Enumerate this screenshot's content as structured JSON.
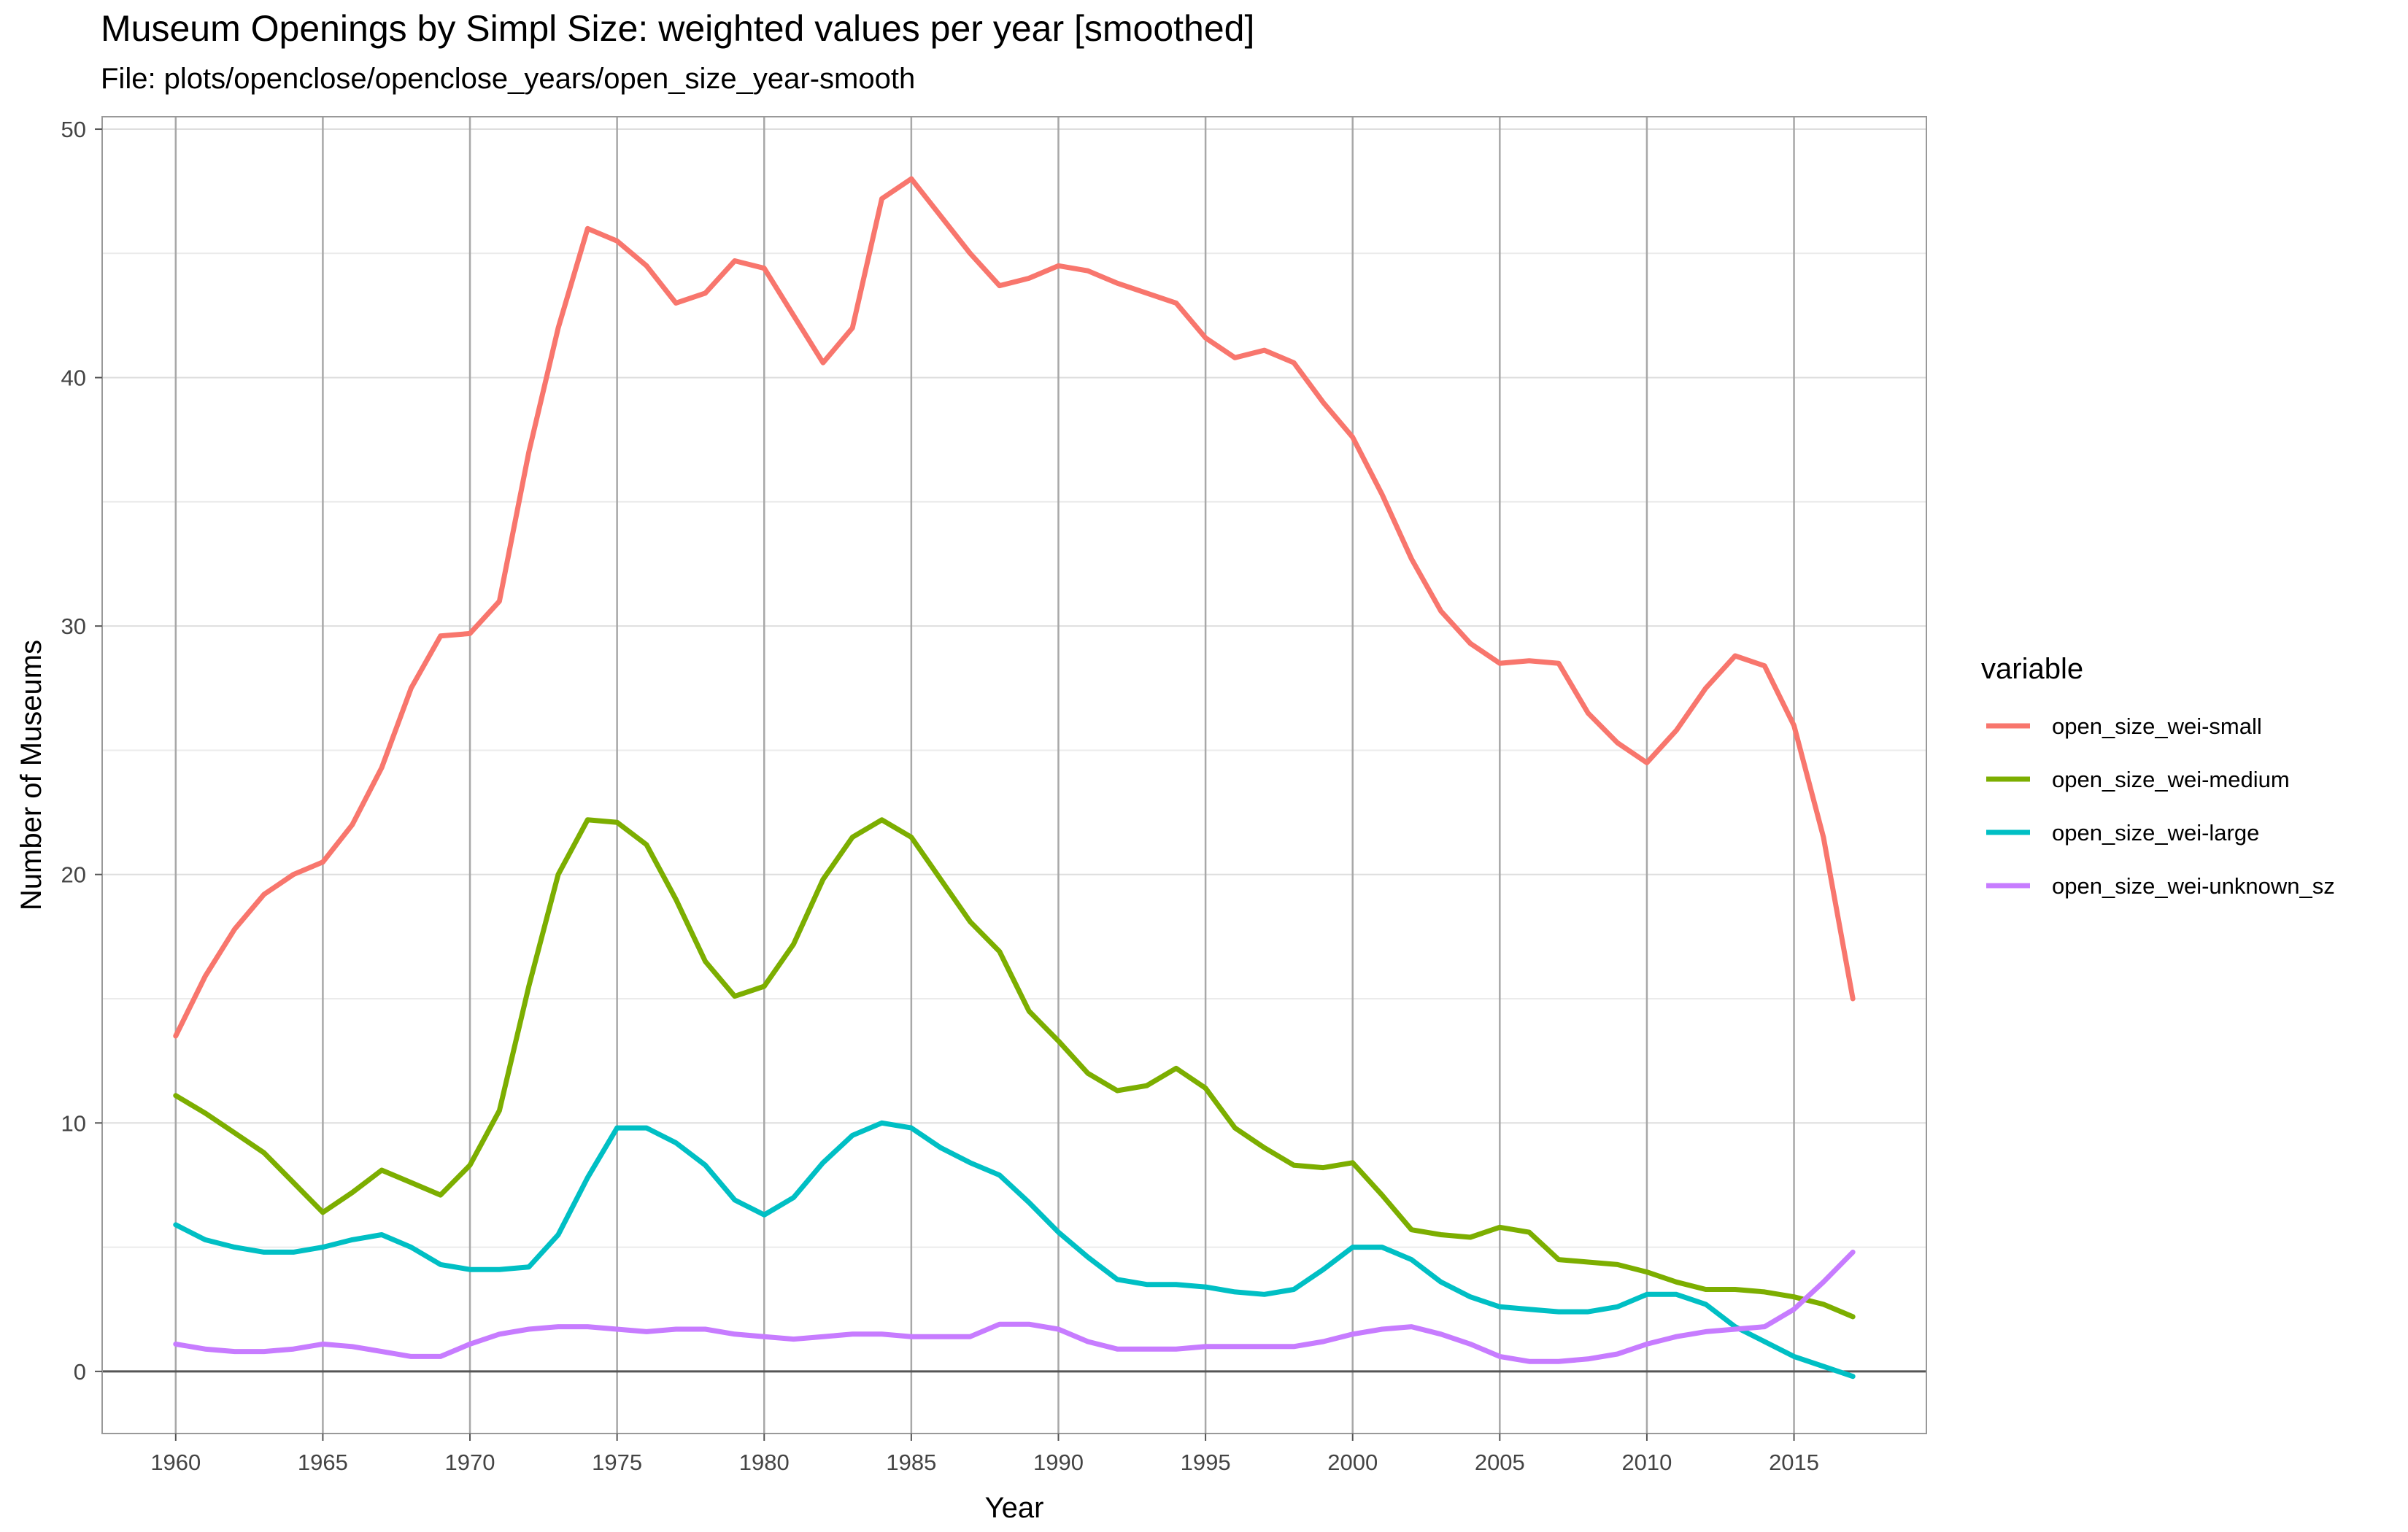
{
  "header": {
    "title": "Museum Openings by Simpl Size: weighted values per year [smoothed]",
    "subtitle": "File: plots/openclose/openclose_years/open_size_year-smooth"
  },
  "chart_data": {
    "type": "line",
    "xlabel": "Year",
    "ylabel": "Number of Museums",
    "xlim": [
      1957.5,
      2019.5
    ],
    "ylim": [
      -2.5,
      50.5
    ],
    "x_ticks": [
      1960,
      1965,
      1970,
      1975,
      1980,
      1985,
      1990,
      1995,
      2000,
      2005,
      2010,
      2015
    ],
    "y_ticks": [
      0,
      10,
      20,
      30,
      40,
      50
    ],
    "grid": true,
    "legend": {
      "title": "variable",
      "position": "right"
    },
    "x": [
      1960,
      1961,
      1962,
      1963,
      1964,
      1965,
      1966,
      1967,
      1968,
      1969,
      1970,
      1971,
      1972,
      1973,
      1974,
      1975,
      1976,
      1977,
      1978,
      1979,
      1980,
      1981,
      1982,
      1983,
      1984,
      1985,
      1986,
      1987,
      1988,
      1989,
      1990,
      1991,
      1992,
      1993,
      1994,
      1995,
      1996,
      1997,
      1998,
      1999,
      2000,
      2001,
      2002,
      2003,
      2004,
      2005,
      2006,
      2007,
      2008,
      2009,
      2010,
      2011,
      2012,
      2013,
      2014,
      2015,
      2016,
      2017
    ],
    "series": [
      {
        "name": "open_size_wei-small",
        "color": "#F8766D",
        "values": [
          13.5,
          15.9,
          17.8,
          19.2,
          20.0,
          20.5,
          22.0,
          24.3,
          27.5,
          29.6,
          29.7,
          31.0,
          37.0,
          42.0,
          46.0,
          45.5,
          44.5,
          43.0,
          43.4,
          44.7,
          44.4,
          42.5,
          40.6,
          42.0,
          47.2,
          48.0,
          46.5,
          45.0,
          43.7,
          44.0,
          44.5,
          44.3,
          43.8,
          43.4,
          43.0,
          41.6,
          40.8,
          41.1,
          40.6,
          39.0,
          37.6,
          35.3,
          32.7,
          30.6,
          29.3,
          28.5,
          28.6,
          28.5,
          26.5,
          25.3,
          24.5,
          25.8,
          27.5,
          28.8,
          28.4,
          26.0,
          21.5,
          15.0
        ]
      },
      {
        "name": "open_size_wei-medium",
        "color": "#7CAE00",
        "values": [
          11.1,
          10.4,
          9.6,
          8.8,
          7.6,
          6.4,
          7.2,
          8.1,
          7.6,
          7.1,
          8.3,
          10.5,
          15.5,
          20.0,
          22.2,
          22.1,
          21.2,
          19.0,
          16.5,
          15.1,
          15.5,
          17.2,
          19.8,
          21.5,
          22.2,
          21.5,
          19.8,
          18.1,
          16.9,
          14.5,
          13.3,
          12.0,
          11.3,
          11.5,
          12.2,
          11.4,
          9.8,
          9.0,
          8.3,
          8.2,
          8.4,
          7.1,
          5.7,
          5.5,
          5.4,
          5.8,
          5.6,
          4.5,
          4.4,
          4.3,
          4.0,
          3.6,
          3.3,
          3.3,
          3.2,
          3.0,
          2.7,
          2.2
        ]
      },
      {
        "name": "open_size_wei-large",
        "color": "#00BFC4",
        "values": [
          5.9,
          5.3,
          5.0,
          4.8,
          4.8,
          5.0,
          5.3,
          5.5,
          5.0,
          4.3,
          4.1,
          4.1,
          4.2,
          5.5,
          7.8,
          9.8,
          9.8,
          9.2,
          8.3,
          6.9,
          6.3,
          7.0,
          8.4,
          9.5,
          10.0,
          9.8,
          9.0,
          8.4,
          7.9,
          6.8,
          5.6,
          4.6,
          3.7,
          3.5,
          3.5,
          3.4,
          3.2,
          3.1,
          3.3,
          4.1,
          5.0,
          5.0,
          4.5,
          3.6,
          3.0,
          2.6,
          2.5,
          2.4,
          2.4,
          2.6,
          3.1,
          3.1,
          2.7,
          1.8,
          1.2,
          0.6,
          0.2,
          -0.2
        ]
      },
      {
        "name": "open_size_wei-unknown_sz",
        "color": "#C77CFF",
        "values": [
          1.1,
          0.9,
          0.8,
          0.8,
          0.9,
          1.1,
          1.0,
          0.8,
          0.6,
          0.6,
          1.1,
          1.5,
          1.7,
          1.8,
          1.8,
          1.7,
          1.6,
          1.7,
          1.7,
          1.5,
          1.4,
          1.3,
          1.4,
          1.5,
          1.5,
          1.4,
          1.4,
          1.4,
          1.9,
          1.9,
          1.7,
          1.2,
          0.9,
          0.9,
          0.9,
          1.0,
          1.0,
          1.0,
          1.0,
          1.2,
          1.5,
          1.7,
          1.8,
          1.5,
          1.1,
          0.6,
          0.4,
          0.4,
          0.5,
          0.7,
          1.1,
          1.4,
          1.6,
          1.7,
          1.8,
          2.5,
          3.6,
          4.8
        ]
      }
    ]
  }
}
